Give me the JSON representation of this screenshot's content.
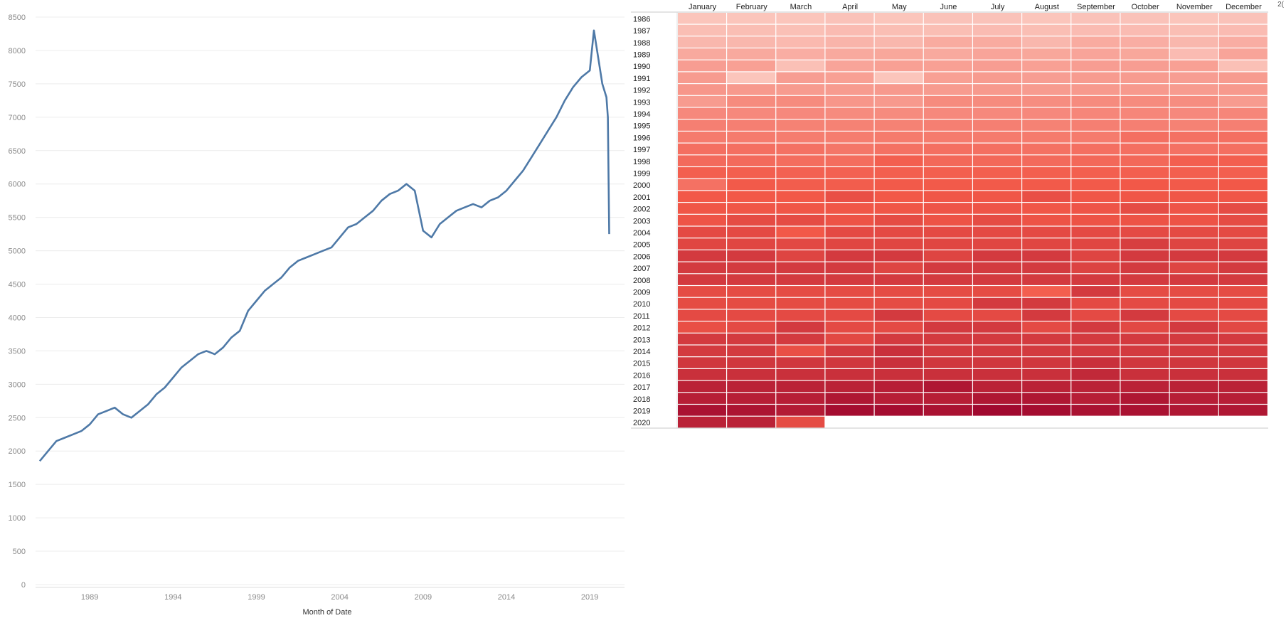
{
  "chart_data": [
    {
      "type": "line",
      "xlabel": "Month of Date",
      "ylabel": "",
      "x_tick_labels": [
        "1989",
        "1994",
        "1999",
        "2004",
        "2009",
        "2014",
        "2019"
      ],
      "y_tick_labels": [
        "0",
        "500",
        "1000",
        "1500",
        "2000",
        "2500",
        "3000",
        "3500",
        "4000",
        "4500",
        "5000",
        "5500",
        "6000",
        "6500",
        "7000",
        "7500",
        "8000",
        "8500"
      ],
      "ylim": [
        0,
        8500
      ],
      "xlim": [
        "1985-10",
        "2021-02"
      ],
      "grid": true,
      "line_color": "#4e79a7",
      "series": [
        {
          "x": [
            "1986-01",
            "1986-07",
            "1987-01",
            "1987-07",
            "1988-01",
            "1988-07",
            "1989-01",
            "1989-07",
            "1990-01",
            "1990-07",
            "1991-01",
            "1991-07",
            "1992-01",
            "1992-07",
            "1993-01",
            "1993-07",
            "1994-01",
            "1994-07",
            "1995-01",
            "1995-07",
            "1996-01",
            "1996-07",
            "1997-01",
            "1997-07",
            "1998-01",
            "1998-07",
            "1999-01",
            "1999-07",
            "2000-01",
            "2000-07",
            "2001-01",
            "2001-07",
            "2002-01",
            "2002-07",
            "2003-01",
            "2003-07",
            "2004-01",
            "2004-07",
            "2005-01",
            "2005-07",
            "2006-01",
            "2006-07",
            "2007-01",
            "2007-07",
            "2008-01",
            "2008-07",
            "2009-01",
            "2009-07",
            "2010-01",
            "2010-07",
            "2011-01",
            "2011-07",
            "2012-01",
            "2012-07",
            "2013-01",
            "2013-07",
            "2014-01",
            "2014-07",
            "2015-01",
            "2015-07",
            "2016-01",
            "2016-07",
            "2017-01",
            "2017-07",
            "2018-01",
            "2018-07",
            "2019-01",
            "2019-04",
            "2019-07",
            "2019-10",
            "2020-01",
            "2020-02",
            "2020-03"
          ],
          "values": [
            1850,
            2000,
            2150,
            2200,
            2250,
            2300,
            2400,
            2550,
            2600,
            2650,
            2550,
            2500,
            2600,
            2700,
            2850,
            2950,
            3100,
            3250,
            3350,
            3450,
            3500,
            3450,
            3550,
            3700,
            3800,
            4100,
            4250,
            4400,
            4500,
            4600,
            4750,
            4850,
            4900,
            4950,
            5000,
            5050,
            5200,
            5350,
            5400,
            5500,
            5600,
            5750,
            5850,
            5900,
            6000,
            5900,
            5300,
            5200,
            5400,
            5500,
            5600,
            5650,
            5700,
            5650,
            5750,
            5800,
            5900,
            6050,
            6200,
            6400,
            6600,
            6800,
            7000,
            7250,
            7450,
            7600,
            7700,
            8300,
            7900,
            7500,
            7300,
            7000,
            5250
          ]
        }
      ]
    },
    {
      "type": "heatmap",
      "columns": [
        "January",
        "February",
        "March",
        "April",
        "May",
        "June",
        "July",
        "August",
        "September",
        "October",
        "November",
        "December"
      ],
      "rows": [
        "1986",
        "1987",
        "1988",
        "1989",
        "1990",
        "1991",
        "1992",
        "1993",
        "1994",
        "1995",
        "1996",
        "1997",
        "1998",
        "1999",
        "2000",
        "2001",
        "2002",
        "2003",
        "2004",
        "2005",
        "2006",
        "2007",
        "2008",
        "2009",
        "2010",
        "2011",
        "2012",
        "2013",
        "2014",
        "2015",
        "2016",
        "2017",
        "2018",
        "2019",
        "2020"
      ],
      "values": [
        [
          0.08,
          0.08,
          0.08,
          0.09,
          0.08,
          0.09,
          0.09,
          0.08,
          0.09,
          0.09,
          0.08,
          0.09
        ],
        [
          0.11,
          0.11,
          0.1,
          0.12,
          0.11,
          0.11,
          0.12,
          0.11,
          0.12,
          0.12,
          0.11,
          0.12
        ],
        [
          0.14,
          0.14,
          0.13,
          0.15,
          0.14,
          0.19,
          0.19,
          0.14,
          0.19,
          0.18,
          0.14,
          0.18
        ],
        [
          0.2,
          0.2,
          0.18,
          0.2,
          0.21,
          0.2,
          0.22,
          0.21,
          0.22,
          0.21,
          0.12,
          0.22
        ],
        [
          0.25,
          0.24,
          0.1,
          0.22,
          0.24,
          0.24,
          0.25,
          0.24,
          0.25,
          0.25,
          0.24,
          0.1
        ],
        [
          0.26,
          0.08,
          0.25,
          0.24,
          0.08,
          0.24,
          0.26,
          0.25,
          0.26,
          0.26,
          0.25,
          0.26
        ],
        [
          0.28,
          0.27,
          0.26,
          0.26,
          0.27,
          0.26,
          0.27,
          0.26,
          0.27,
          0.27,
          0.26,
          0.27
        ],
        [
          0.26,
          0.33,
          0.33,
          0.28,
          0.27,
          0.33,
          0.33,
          0.32,
          0.33,
          0.33,
          0.32,
          0.26
        ],
        [
          0.34,
          0.34,
          0.34,
          0.33,
          0.33,
          0.34,
          0.34,
          0.34,
          0.35,
          0.35,
          0.34,
          0.35
        ],
        [
          0.38,
          0.38,
          0.37,
          0.37,
          0.37,
          0.38,
          0.38,
          0.37,
          0.38,
          0.38,
          0.37,
          0.38
        ],
        [
          0.4,
          0.4,
          0.39,
          0.39,
          0.4,
          0.4,
          0.4,
          0.4,
          0.4,
          0.45,
          0.44,
          0.45
        ],
        [
          0.45,
          0.45,
          0.44,
          0.42,
          0.44,
          0.45,
          0.45,
          0.44,
          0.45,
          0.45,
          0.44,
          0.45
        ],
        [
          0.47,
          0.47,
          0.46,
          0.46,
          0.52,
          0.48,
          0.48,
          0.47,
          0.48,
          0.48,
          0.52,
          0.52
        ],
        [
          0.52,
          0.52,
          0.51,
          0.51,
          0.52,
          0.52,
          0.52,
          0.52,
          0.52,
          0.52,
          0.52,
          0.52
        ],
        [
          0.44,
          0.54,
          0.53,
          0.53,
          0.54,
          0.54,
          0.54,
          0.54,
          0.54,
          0.55,
          0.54,
          0.55
        ],
        [
          0.55,
          0.55,
          0.55,
          0.6,
          0.55,
          0.56,
          0.56,
          0.6,
          0.56,
          0.56,
          0.56,
          0.56
        ],
        [
          0.56,
          0.56,
          0.56,
          0.56,
          0.56,
          0.57,
          0.57,
          0.56,
          0.57,
          0.62,
          0.57,
          0.62
        ],
        [
          0.57,
          0.62,
          0.62,
          0.58,
          0.62,
          0.58,
          0.62,
          0.58,
          0.58,
          0.58,
          0.58,
          0.62
        ],
        [
          0.63,
          0.63,
          0.55,
          0.63,
          0.63,
          0.63,
          0.63,
          0.63,
          0.63,
          0.63,
          0.63,
          0.63
        ],
        [
          0.65,
          0.65,
          0.64,
          0.65,
          0.65,
          0.65,
          0.65,
          0.65,
          0.65,
          0.7,
          0.66,
          0.66
        ],
        [
          0.72,
          0.72,
          0.66,
          0.72,
          0.72,
          0.66,
          0.72,
          0.72,
          0.66,
          0.72,
          0.72,
          0.72
        ],
        [
          0.72,
          0.72,
          0.72,
          0.72,
          0.66,
          0.72,
          0.72,
          0.72,
          0.67,
          0.72,
          0.66,
          0.72
        ],
        [
          0.72,
          0.72,
          0.72,
          0.72,
          0.72,
          0.72,
          0.72,
          0.72,
          0.72,
          0.72,
          0.72,
          0.72
        ],
        [
          0.62,
          0.62,
          0.62,
          0.62,
          0.62,
          0.62,
          0.62,
          0.52,
          0.72,
          0.62,
          0.62,
          0.62
        ],
        [
          0.62,
          0.62,
          0.62,
          0.62,
          0.62,
          0.63,
          0.72,
          0.72,
          0.63,
          0.63,
          0.63,
          0.63
        ],
        [
          0.63,
          0.63,
          0.63,
          0.63,
          0.72,
          0.63,
          0.63,
          0.72,
          0.63,
          0.72,
          0.63,
          0.63
        ],
        [
          0.6,
          0.63,
          0.72,
          0.63,
          0.63,
          0.72,
          0.72,
          0.63,
          0.72,
          0.64,
          0.72,
          0.64
        ],
        [
          0.72,
          0.72,
          0.72,
          0.64,
          0.72,
          0.72,
          0.72,
          0.72,
          0.72,
          0.72,
          0.72,
          0.72
        ],
        [
          0.72,
          0.72,
          0.6,
          0.72,
          0.78,
          0.72,
          0.72,
          0.72,
          0.72,
          0.72,
          0.72,
          0.72
        ],
        [
          0.74,
          0.74,
          0.74,
          0.74,
          0.78,
          0.74,
          0.74,
          0.74,
          0.78,
          0.74,
          0.74,
          0.74
        ],
        [
          0.78,
          0.78,
          0.78,
          0.78,
          0.78,
          0.78,
          0.78,
          0.78,
          0.82,
          0.78,
          0.78,
          0.78
        ],
        [
          0.86,
          0.86,
          0.86,
          0.86,
          0.88,
          0.92,
          0.86,
          0.86,
          0.86,
          0.86,
          0.86,
          0.86
        ],
        [
          0.88,
          0.88,
          0.88,
          0.92,
          0.88,
          0.88,
          0.92,
          0.92,
          0.88,
          0.92,
          0.88,
          0.88
        ],
        [
          0.95,
          0.94,
          0.9,
          0.98,
          0.98,
          0.95,
          1.0,
          0.98,
          0.95,
          0.95,
          0.92,
          0.92
        ],
        [
          0.86,
          0.86,
          0.62,
          null,
          null,
          null,
          null,
          null,
          null,
          null,
          null,
          null
        ]
      ],
      "color_scale": [
        "#fcd7cf",
        "#a1092f"
      ]
    }
  ],
  "corner_label": "2("
}
